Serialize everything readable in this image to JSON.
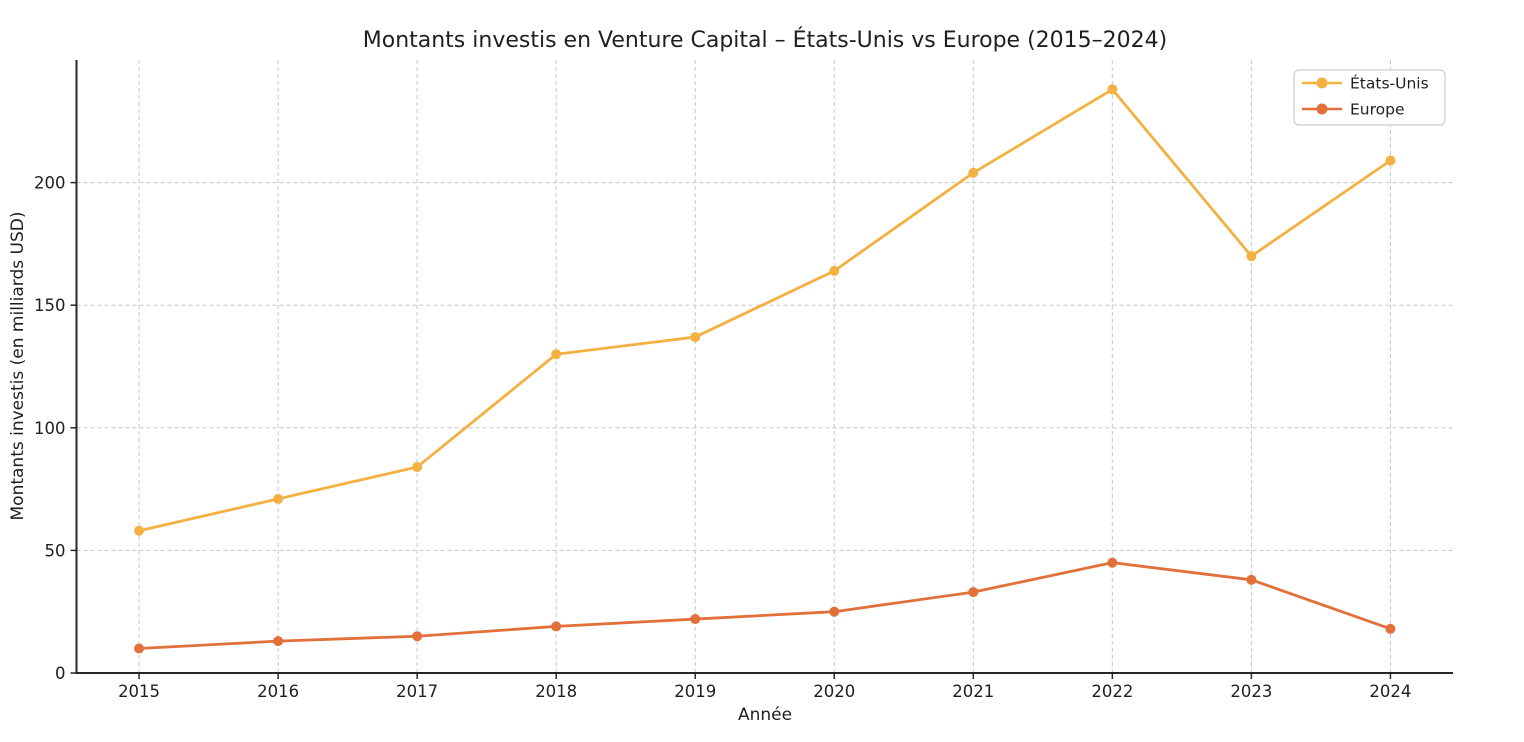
{
  "page": {
    "background": "#ffffff"
  },
  "colors": {
    "axis": "#262626",
    "tick_text": "#1f1f1f",
    "grid": "#cccccc",
    "legend_border": "#cccccc",
    "legend_background": "#ffffff",
    "series_us": "#F4B142",
    "series_europe": "#E2703A"
  },
  "chart_data": {
    "type": "line",
    "title": "Montants investis en Venture Capital – États-Unis vs Europe (2015–2024)",
    "xlabel": "Année",
    "ylabel": "Montants investis (en milliards USD)",
    "x": [
      2015,
      2016,
      2017,
      2018,
      2019,
      2020,
      2021,
      2022,
      2023,
      2024
    ],
    "x_tick_labels": [
      "2015",
      "2016",
      "2017",
      "2018",
      "2019",
      "2020",
      "2021",
      "2022",
      "2023",
      "2024"
    ],
    "yticks": [
      0,
      50,
      100,
      150,
      200
    ],
    "y_tick_labels": [
      "0",
      "50",
      "100",
      "150",
      "200"
    ],
    "xlim": [
      2014.55,
      2024.45
    ],
    "ylim": [
      0,
      250
    ],
    "grid": "dashed",
    "markers": "circle",
    "legend": {
      "position": "upper-right",
      "entries": [
        "États-Unis",
        "Europe"
      ]
    },
    "series": [
      {
        "name": "États-Unis",
        "color": "#F4B142",
        "values": [
          58,
          71,
          84,
          130,
          137,
          164,
          204,
          238,
          170,
          209
        ]
      },
      {
        "name": "Europe",
        "color": "#E2703A",
        "values": [
          10,
          13,
          15,
          19,
          22,
          25,
          33,
          45,
          38,
          18
        ]
      }
    ]
  }
}
